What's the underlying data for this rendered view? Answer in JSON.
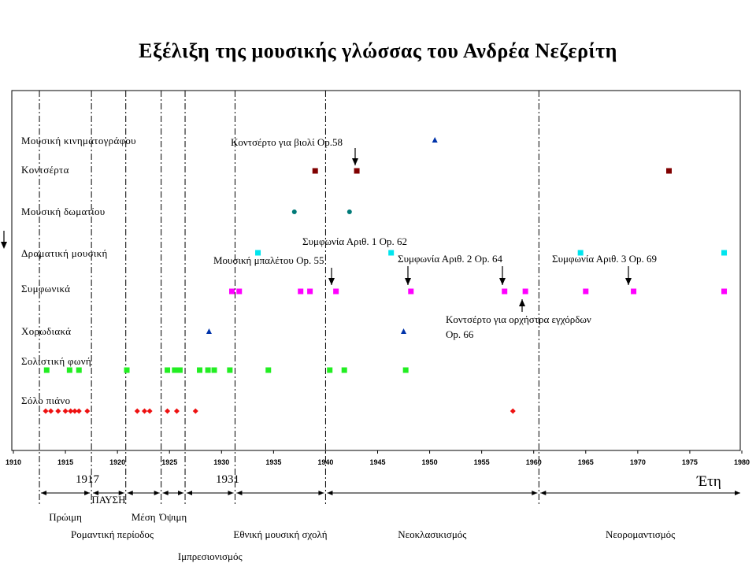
{
  "chart_data": {
    "type": "scatter",
    "title": "Εξέλιξη της μουσικής γλώσσας του Ανδρέα Νεζερίτη",
    "xlabel": "Έτη",
    "xlim": [
      1910,
      1980
    ],
    "xticks": [
      "1910",
      "1915",
      "1920",
      "1925",
      "1930",
      "1935",
      "1940",
      "1945",
      "1950",
      "1955",
      "1960",
      "1965",
      "1970",
      "1975",
      "1980"
    ],
    "grid_x": [
      1912.5,
      1917.5,
      1920.8,
      1924.2,
      1926.5,
      1931.3,
      1940,
      1960.5
    ],
    "categories": [
      "Μουσική κινηματογράφου",
      "Κοντσέρτα",
      "Μουσική δωματίου",
      "Δραματική μουσική",
      "Συμφωνικά",
      "Χορωδιακά",
      "Σολιστική φωνή",
      "Σόλο πιάνο"
    ],
    "series": [
      {
        "category": "Μουσική κινηματογράφου",
        "color": "#0033aa",
        "marker": "triangle",
        "x": [
          1950.5
        ]
      },
      {
        "category": "Κοντσέρτα",
        "color": "#800000",
        "marker": "square",
        "x": [
          1939,
          1943,
          1973
        ]
      },
      {
        "category": "Μουσική δωματίου",
        "color": "#007a78",
        "marker": "circle",
        "x": [
          1937,
          1942.3
        ]
      },
      {
        "category": "Δραματική μουσική",
        "color": "#00e5ee",
        "marker": "square",
        "x": [
          1933.5,
          1946.3,
          1964.5,
          1978.3
        ]
      },
      {
        "category": "Συμφωνικά",
        "color": "#ff00ff",
        "marker": "square",
        "x": [
          1931,
          1931.7,
          1937.6,
          1938.5,
          1941,
          1948.2,
          1957.2,
          1959.2,
          1965,
          1969.6,
          1978.3
        ]
      },
      {
        "category": "Χορωδιακά",
        "color": "#0033aa",
        "marker": "triangle",
        "x": [
          1928.8,
          1947.5
        ]
      },
      {
        "category": "Σολιστική φωνή",
        "color": "#22ee22",
        "marker": "square",
        "x": [
          1913.2,
          1915.4,
          1916.3,
          1920.9,
          1924.8,
          1925.5,
          1926,
          1927.9,
          1928.7,
          1929.3,
          1930.8,
          1934.5,
          1940.4,
          1941.8,
          1947.7
        ]
      },
      {
        "category": "Σόλο πιάνο",
        "color": "#ee1111",
        "marker": "diamond",
        "x": [
          1913.1,
          1913.6,
          1914.3,
          1915.0,
          1915.5,
          1915.9,
          1916.3,
          1917.1,
          1921.9,
          1922.6,
          1923.1,
          1924.8,
          1925.7,
          1927.5,
          1958
        ]
      }
    ],
    "annotations": [
      {
        "lines": [
          "Κοντσέρτο για βιολί Op.58"
        ],
        "target_x": 1943,
        "target_category": "Κοντσέρτα",
        "arrow": "down"
      },
      {
        "lines": [
          "Συμφωνία Αριθ. 1 Op. 62"
        ],
        "target_x": 1948.2,
        "target_category": "Συμφωνικά",
        "arrow": "down"
      },
      {
        "lines": [
          "Μουσική μπαλέτου Op. 55"
        ],
        "target_x": 1941,
        "target_category": "Συμφωνικά",
        "arrow": "down"
      },
      {
        "lines": [
          "Συμφωνία Αριθ. 2 Op. 64"
        ],
        "target_x": 1957.2,
        "target_category": "Συμφωνικά",
        "arrow": "down"
      },
      {
        "lines": [
          "Συμφωνία Αριθ. 3 Op. 69"
        ],
        "target_x": 1969.6,
        "target_category": "Συμφωνικά",
        "arrow": "down"
      },
      {
        "lines": [
          "Κοντσέρτο για ορχήστρα εγχόρδων",
          "Op. 66"
        ],
        "target_x": 1959.2,
        "target_category": "Συμφωνικά",
        "arrow": "up"
      }
    ],
    "year_markers": [
      "1917",
      "1931"
    ],
    "periods": [
      {
        "label": "Πρώιμη",
        "start": 1912.5,
        "end": 1917.5,
        "row": 1
      },
      {
        "label": "ΠΑΥΣΗ",
        "start": 1917.5,
        "end": 1920.8,
        "row": 0
      },
      {
        "label": "Μέση",
        "start": 1920.8,
        "end": 1924.2,
        "row": 1
      },
      {
        "label": "Όψιμη",
        "start": 1924.2,
        "end": 1926.5,
        "row": 1
      },
      {
        "label": "Ρομαντική περίοδος",
        "start": 1912.5,
        "end": 1926.5,
        "row": 2
      },
      {
        "label": "Ιμπρεσιονισμός",
        "start": 1926.5,
        "end": 1931.3,
        "row": 3
      },
      {
        "label": "Εθνική μουσική σχολή",
        "start": 1931.3,
        "end": 1940,
        "row": 2
      },
      {
        "label": "Νεοκλασικισμός",
        "start": 1940,
        "end": 1960.5,
        "row": 2
      },
      {
        "label": "Νεορομαντισμός",
        "start": 1960.5,
        "end": 1980,
        "row": 2
      }
    ],
    "grid": false,
    "legend": "none"
  }
}
